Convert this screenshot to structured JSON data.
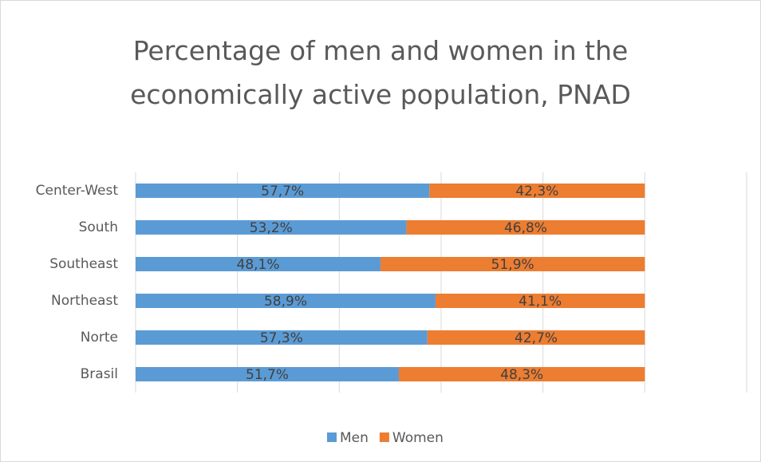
{
  "chart_data": {
    "type": "stacked_barh",
    "title": "Percentage of men and women in the economically active population, PNAD",
    "categories": [
      "Center-West",
      "South",
      "Southeast",
      "Northeast",
      "Norte",
      "Brasil"
    ],
    "series": [
      {
        "name": "Men",
        "color": "#5b9bd5",
        "values": [
          57.7,
          53.2,
          48.1,
          58.9,
          57.3,
          51.7
        ],
        "value_labels": [
          "57,7%",
          "53,2%",
          "48,1%",
          "58,9%",
          "57,3%",
          "51,7%"
        ]
      },
      {
        "name": "Women",
        "color": "#ed7d31",
        "values": [
          42.3,
          46.8,
          51.9,
          41.1,
          42.7,
          48.3
        ],
        "value_labels": [
          "42,3%",
          "46,8%",
          "51,9%",
          "41,1%",
          "42,7%",
          "48,3%"
        ]
      }
    ],
    "xlim": [
      0,
      120
    ],
    "xticks": [
      0,
      20,
      40,
      60,
      80,
      100,
      120
    ],
    "grid": true,
    "legend": "bottom"
  }
}
